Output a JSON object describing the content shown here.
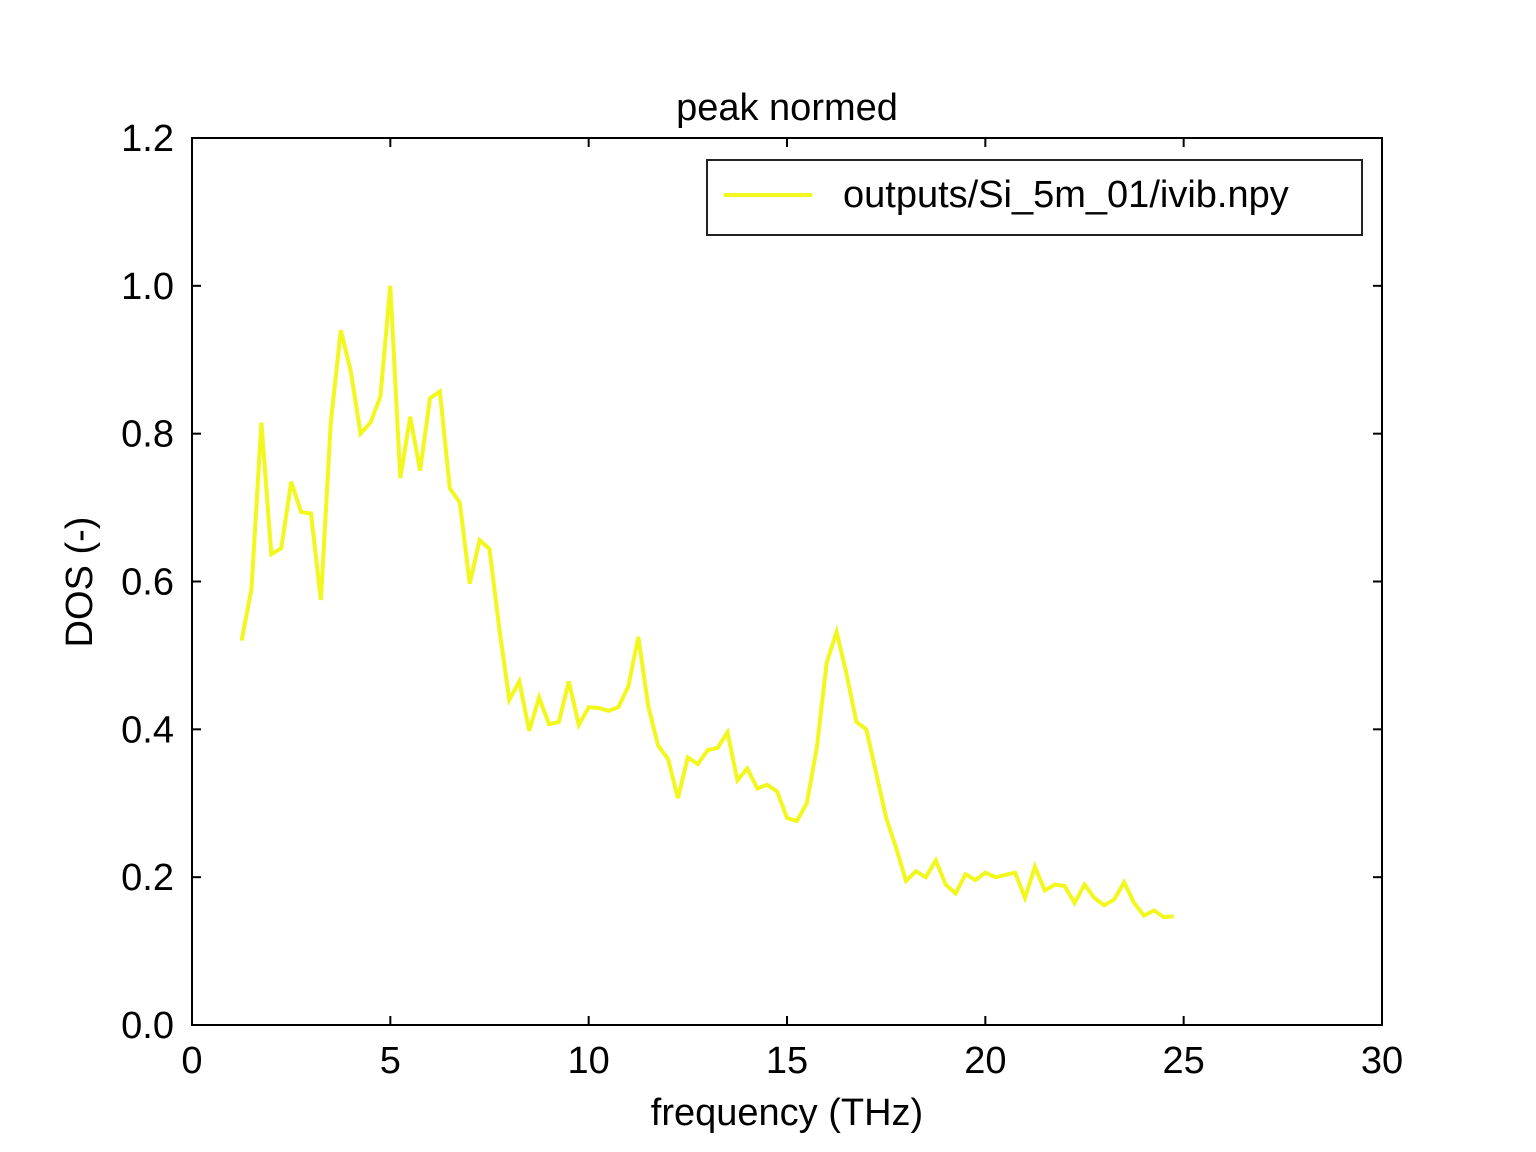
{
  "chart_data": {
    "type": "line",
    "title": "peak normed",
    "xlabel": "frequency (THz)",
    "ylabel": "DOS (-)",
    "xlim": [
      0,
      30
    ],
    "ylim": [
      0,
      1.2
    ],
    "xticks": [
      0,
      5,
      10,
      15,
      20,
      25,
      30
    ],
    "xtick_labels": [
      "0",
      "5",
      "10",
      "15",
      "20",
      "25",
      "30"
    ],
    "yticks": [
      0,
      0.2,
      0.4,
      0.6,
      0.8,
      1.0,
      1.2
    ],
    "ytick_labels": [
      "0.0",
      "0.2",
      "0.4",
      "0.6",
      "0.8",
      "1.0",
      "1.2"
    ],
    "grid": false,
    "legend_position": "top-right",
    "series": [
      {
        "name": "outputs/Si_5m_01/ivib.npy",
        "color": "#f2f71e",
        "x": [
          1.25,
          1.5,
          1.75,
          2.0,
          2.25,
          2.5,
          2.75,
          3.0,
          3.25,
          3.5,
          3.75,
          4.0,
          4.25,
          4.5,
          4.75,
          5.0,
          5.25,
          5.5,
          5.75,
          6.0,
          6.25,
          6.5,
          6.75,
          7.0,
          7.25,
          7.5,
          7.75,
          8.0,
          8.25,
          8.5,
          8.75,
          9.0,
          9.25,
          9.5,
          9.75,
          10.0,
          10.25,
          10.5,
          10.75,
          11.0,
          11.25,
          11.5,
          11.75,
          12.0,
          12.25,
          12.5,
          12.75,
          13.0,
          13.25,
          13.5,
          13.75,
          14.0,
          14.25,
          14.5,
          14.75,
          15.0,
          15.25,
          15.5,
          15.75,
          16.0,
          16.25,
          16.5,
          16.75,
          17.0,
          17.25,
          17.5,
          17.75,
          18.0,
          18.25,
          18.5,
          18.75,
          19.0,
          19.25,
          19.5,
          19.75,
          20.0,
          20.25,
          20.5,
          20.75,
          21.0,
          21.25,
          21.5,
          21.75,
          22.0,
          22.25,
          22.5,
          22.75,
          23.0,
          23.25,
          23.5,
          23.75,
          24.0,
          24.25,
          24.5,
          24.75
        ],
        "y": [
          0.52,
          0.59,
          0.815,
          0.637,
          0.645,
          0.735,
          0.694,
          0.692,
          0.575,
          0.815,
          0.94,
          0.885,
          0.8,
          0.815,
          0.85,
          1.0,
          0.74,
          0.823,
          0.75,
          0.848,
          0.857,
          0.726,
          0.707,
          0.597,
          0.656,
          0.644,
          0.535,
          0.44,
          0.465,
          0.398,
          0.443,
          0.407,
          0.41,
          0.465,
          0.406,
          0.43,
          0.429,
          0.425,
          0.43,
          0.458,
          0.525,
          0.432,
          0.378,
          0.36,
          0.307,
          0.362,
          0.353,
          0.372,
          0.375,
          0.396,
          0.331,
          0.347,
          0.32,
          0.325,
          0.316,
          0.28,
          0.276,
          0.3,
          0.375,
          0.49,
          0.532,
          0.475,
          0.41,
          0.4,
          0.34,
          0.28,
          0.24,
          0.195,
          0.208,
          0.2,
          0.223,
          0.19,
          0.178,
          0.204,
          0.196,
          0.206,
          0.2,
          0.203,
          0.206,
          0.172,
          0.214,
          0.182,
          0.19,
          0.188,
          0.165,
          0.19,
          0.172,
          0.162,
          0.17,
          0.193,
          0.165,
          0.148,
          0.155,
          0.146,
          0.147
        ]
      }
    ]
  }
}
